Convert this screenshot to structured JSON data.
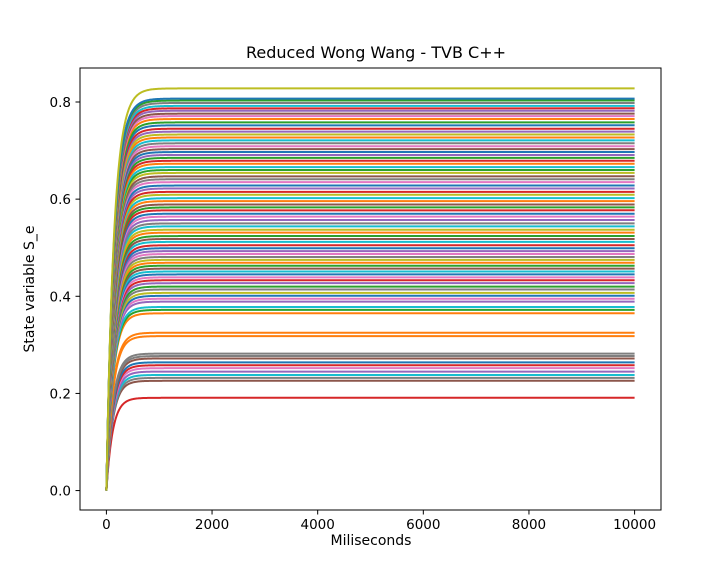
{
  "chart_data": {
    "type": "line",
    "title": "Reduced Wong Wang - TVB C++",
    "xlabel": "Miliseconds",
    "ylabel": "State variable S_e",
    "xlim": [
      -500,
      10500
    ],
    "ylim": [
      -0.04,
      0.87
    ],
    "xticks": [
      0,
      2000,
      4000,
      6000,
      8000,
      10000
    ],
    "yticks": [
      0.0,
      0.2,
      0.4,
      0.6,
      0.8
    ],
    "x_range": [
      0,
      10000
    ],
    "grid": false,
    "legend": "none",
    "color_cycle": [
      "#1f77b4",
      "#ff7f0e",
      "#2ca02c",
      "#d62728",
      "#9467bd",
      "#8c564b",
      "#e377c2",
      "#7f7f7f",
      "#bcbd22",
      "#17becf"
    ],
    "series": [
      {
        "steady": 0.828,
        "color": "#bcbd22"
      },
      {
        "steady": 0.807,
        "color": "#1f77b4"
      },
      {
        "steady": 0.803,
        "color": "#2ca02c"
      },
      {
        "steady": 0.798,
        "color": "#7f7f7f"
      },
      {
        "steady": 0.792,
        "color": "#17becf"
      },
      {
        "steady": 0.787,
        "color": "#d62728"
      },
      {
        "steady": 0.782,
        "color": "#9467bd"
      },
      {
        "steady": 0.776,
        "color": "#8c564b"
      },
      {
        "steady": 0.771,
        "color": "#e377c2"
      },
      {
        "steady": 0.765,
        "color": "#ff7f0e"
      },
      {
        "steady": 0.758,
        "color": "#2ca02c"
      },
      {
        "steady": 0.752,
        "color": "#1f77b4"
      },
      {
        "steady": 0.745,
        "color": "#d62728"
      },
      {
        "steady": 0.739,
        "color": "#9467bd"
      },
      {
        "steady": 0.733,
        "color": "#bcbd22"
      },
      {
        "steady": 0.727,
        "color": "#ff7f0e"
      },
      {
        "steady": 0.721,
        "color": "#17becf"
      },
      {
        "steady": 0.715,
        "color": "#7f7f7f"
      },
      {
        "steady": 0.709,
        "color": "#e377c2"
      },
      {
        "steady": 0.703,
        "color": "#8c564b"
      },
      {
        "steady": 0.697,
        "color": "#1f77b4"
      },
      {
        "steady": 0.691,
        "color": "#9467bd"
      },
      {
        "steady": 0.685,
        "color": "#2ca02c"
      },
      {
        "steady": 0.679,
        "color": "#d62728"
      },
      {
        "steady": 0.673,
        "color": "#ff7f0e"
      },
      {
        "steady": 0.666,
        "color": "#17becf"
      },
      {
        "steady": 0.66,
        "color": "#2ca02c"
      },
      {
        "steady": 0.654,
        "color": "#bcbd22"
      },
      {
        "steady": 0.647,
        "color": "#8c564b"
      },
      {
        "steady": 0.641,
        "color": "#7f7f7f"
      },
      {
        "steady": 0.635,
        "color": "#e377c2"
      },
      {
        "steady": 0.628,
        "color": "#1f77b4"
      },
      {
        "steady": 0.622,
        "color": "#9467bd"
      },
      {
        "steady": 0.615,
        "color": "#d62728"
      },
      {
        "steady": 0.609,
        "color": "#bcbd22"
      },
      {
        "steady": 0.602,
        "color": "#17becf"
      },
      {
        "steady": 0.596,
        "color": "#ff7f0e"
      },
      {
        "steady": 0.589,
        "color": "#8c564b"
      },
      {
        "steady": 0.583,
        "color": "#2ca02c"
      },
      {
        "steady": 0.577,
        "color": "#d62728"
      },
      {
        "steady": 0.57,
        "color": "#1f77b4"
      },
      {
        "steady": 0.564,
        "color": "#e377c2"
      },
      {
        "steady": 0.557,
        "color": "#9467bd"
      },
      {
        "steady": 0.55,
        "color": "#7f7f7f"
      },
      {
        "steady": 0.544,
        "color": "#17becf"
      },
      {
        "steady": 0.537,
        "color": "#bcbd22"
      },
      {
        "steady": 0.531,
        "color": "#ff7f0e"
      },
      {
        "steady": 0.524,
        "color": "#2ca02c"
      },
      {
        "steady": 0.518,
        "color": "#8c564b"
      },
      {
        "steady": 0.512,
        "color": "#17becf"
      },
      {
        "steady": 0.505,
        "color": "#d62728"
      },
      {
        "steady": 0.499,
        "color": "#1f77b4"
      },
      {
        "steady": 0.493,
        "color": "#9467bd"
      },
      {
        "steady": 0.487,
        "color": "#e377c2"
      },
      {
        "steady": 0.481,
        "color": "#7f7f7f"
      },
      {
        "steady": 0.475,
        "color": "#bcbd22"
      },
      {
        "steady": 0.469,
        "color": "#ff7f0e"
      },
      {
        "steady": 0.463,
        "color": "#2ca02c"
      },
      {
        "steady": 0.457,
        "color": "#8c564b"
      },
      {
        "steady": 0.451,
        "color": "#17becf"
      },
      {
        "steady": 0.445,
        "color": "#1f77b4"
      },
      {
        "steady": 0.439,
        "color": "#e377c2"
      },
      {
        "steady": 0.433,
        "color": "#d62728"
      },
      {
        "steady": 0.427,
        "color": "#9467bd"
      },
      {
        "steady": 0.42,
        "color": "#2ca02c"
      },
      {
        "steady": 0.414,
        "color": "#7f7f7f"
      },
      {
        "steady": 0.407,
        "color": "#bcbd22"
      },
      {
        "steady": 0.401,
        "color": "#1f77b4"
      },
      {
        "steady": 0.395,
        "color": "#e377c2"
      },
      {
        "steady": 0.389,
        "color": "#9467bd"
      },
      {
        "steady": 0.378,
        "color": "#17becf"
      },
      {
        "steady": 0.372,
        "color": "#2ca02c"
      },
      {
        "steady": 0.365,
        "color": "#ff7f0e"
      },
      {
        "steady": 0.325,
        "color": "#ff7f0e"
      },
      {
        "steady": 0.318,
        "color": "#ff7f0e"
      },
      {
        "steady": 0.282,
        "color": "#7f7f7f"
      },
      {
        "steady": 0.277,
        "color": "#7f7f7f"
      },
      {
        "steady": 0.272,
        "color": "#8c564b"
      },
      {
        "steady": 0.264,
        "color": "#1f77b4"
      },
      {
        "steady": 0.258,
        "color": "#d62728"
      },
      {
        "steady": 0.252,
        "color": "#e377c2"
      },
      {
        "steady": 0.245,
        "color": "#9467bd"
      },
      {
        "steady": 0.238,
        "color": "#17becf"
      },
      {
        "steady": 0.232,
        "color": "#7f7f7f"
      },
      {
        "steady": 0.226,
        "color": "#8c564b"
      },
      {
        "steady": 0.191,
        "color": "#d62728"
      }
    ]
  }
}
